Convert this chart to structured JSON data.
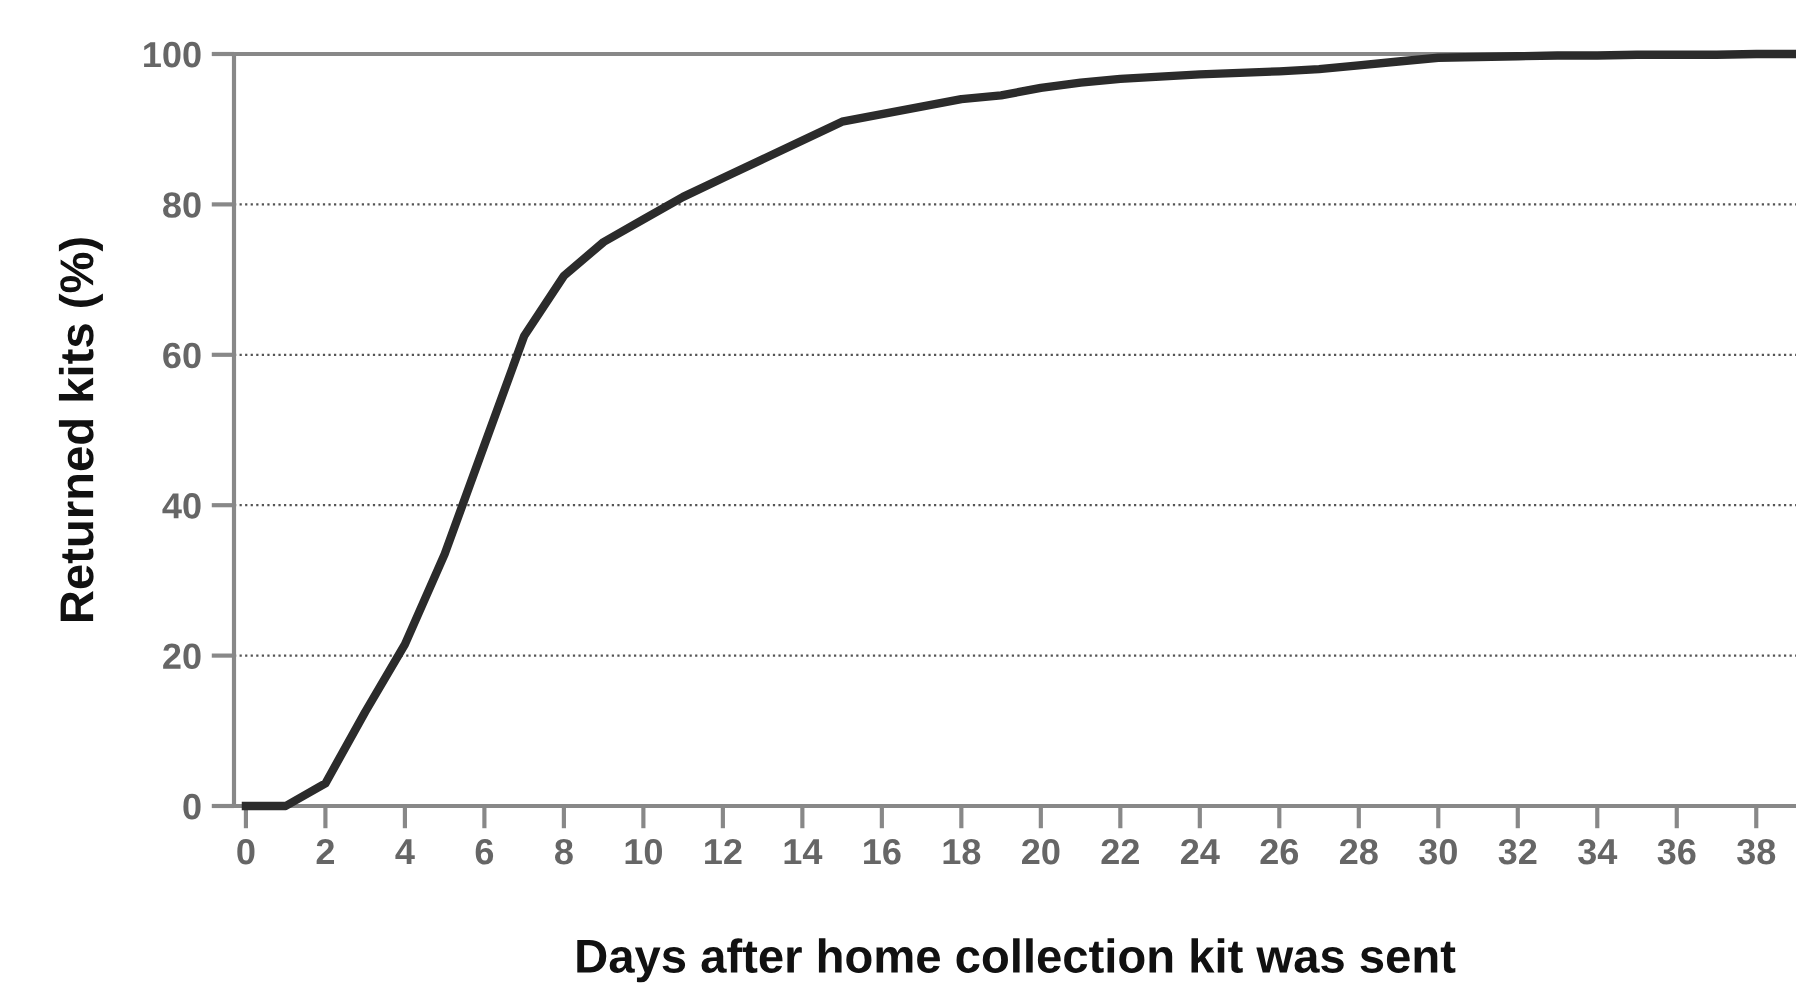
{
  "chart_data": {
    "type": "line",
    "xlabel": "Days after home collection kit was sent",
    "ylabel": "Returned kits (%)",
    "x": [
      0,
      1,
      2,
      3,
      4,
      5,
      6,
      7,
      8,
      9,
      10,
      11,
      12,
      13,
      14,
      15,
      16,
      17,
      18,
      19,
      20,
      21,
      22,
      23,
      24,
      25,
      26,
      27,
      28,
      29,
      30,
      31,
      32,
      33,
      34,
      35,
      36,
      37,
      38,
      39
    ],
    "series": [
      {
        "color": "#2b2b2b",
        "values": [
          0,
          0,
          3,
          12.5,
          21.5,
          33.5,
          48,
          62.5,
          70.5,
          75,
          78,
          81,
          83.5,
          86,
          88.5,
          91,
          92,
          93,
          94,
          94.5,
          95.5,
          96.2,
          96.7,
          97,
          97.3,
          97.5,
          97.7,
          98,
          98.5,
          99,
          99.5,
          99.6,
          99.7,
          99.8,
          99.8,
          99.9,
          99.9,
          99.9,
          100,
          100
        ]
      }
    ],
    "xlim": [
      -0.3,
      39
    ],
    "ylim": [
      0,
      100
    ],
    "xticks": [
      0,
      2,
      4,
      6,
      8,
      10,
      12,
      14,
      16,
      18,
      20,
      22,
      24,
      26,
      28,
      30,
      32,
      34,
      36,
      38
    ],
    "yticks": [
      0,
      20,
      40,
      60,
      80,
      100
    ],
    "grid": "y",
    "legend": false,
    "marker": "none",
    "line_style": "solid"
  }
}
